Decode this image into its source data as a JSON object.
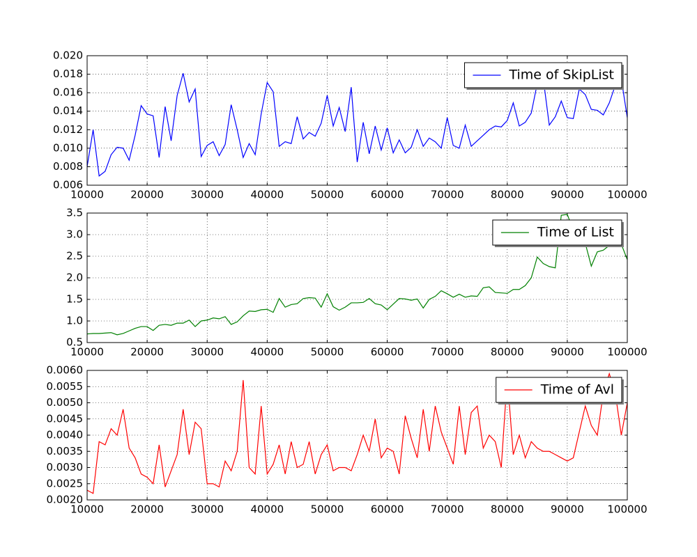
{
  "chart_data": [
    {
      "type": "line",
      "x": [
        10000,
        11000,
        12000,
        13000,
        14000,
        15000,
        16000,
        17000,
        18000,
        19000,
        20000,
        21000,
        22000,
        23000,
        24000,
        25000,
        26000,
        27000,
        28000,
        29000,
        30000,
        31000,
        32000,
        33000,
        34000,
        35000,
        36000,
        37000,
        38000,
        39000,
        40000,
        41000,
        42000,
        43000,
        44000,
        45000,
        46000,
        47000,
        48000,
        49000,
        50000,
        51000,
        52000,
        53000,
        54000,
        55000,
        56000,
        57000,
        58000,
        59000,
        60000,
        61000,
        62000,
        63000,
        64000,
        65000,
        66000,
        67000,
        68000,
        69000,
        70000,
        71000,
        72000,
        73000,
        74000,
        75000,
        76000,
        77000,
        78000,
        79000,
        80000,
        81000,
        82000,
        83000,
        84000,
        85000,
        86000,
        87000,
        88000,
        89000,
        90000,
        91000,
        92000,
        93000,
        94000,
        95000,
        96000,
        97000,
        98000,
        99000,
        100000
      ],
      "series": [
        {
          "name": "Time of SkipList",
          "color": "#0000ff",
          "values": [
            0.008,
            0.012,
            0.007,
            0.0075,
            0.0093,
            0.0101,
            0.01,
            0.0087,
            0.0114,
            0.0146,
            0.0137,
            0.0135,
            0.009,
            0.0145,
            0.0108,
            0.0157,
            0.0181,
            0.015,
            0.0164,
            0.0091,
            0.0103,
            0.0107,
            0.0092,
            0.0104,
            0.0147,
            0.012,
            0.009,
            0.0105,
            0.0093,
            0.0137,
            0.0171,
            0.0161,
            0.0102,
            0.0107,
            0.0105,
            0.0134,
            0.011,
            0.0117,
            0.0113,
            0.0127,
            0.0157,
            0.0124,
            0.0144,
            0.0118,
            0.0166,
            0.0085,
            0.0128,
            0.0094,
            0.0124,
            0.0098,
            0.0122,
            0.0095,
            0.0109,
            0.0095,
            0.0101,
            0.012,
            0.0102,
            0.0111,
            0.0107,
            0.01,
            0.0133,
            0.0103,
            0.01,
            0.0125,
            0.0102,
            0.0108,
            0.0114,
            0.012,
            0.0124,
            0.0123,
            0.013,
            0.0149,
            0.0124,
            0.0128,
            0.0138,
            0.017,
            0.0175,
            0.0125,
            0.0134,
            0.0151,
            0.0133,
            0.0132,
            0.0164,
            0.0158,
            0.0142,
            0.0141,
            0.0136,
            0.0149,
            0.0168,
            0.0175,
            0.0133
          ]
        }
      ],
      "xlim": [
        10000,
        100000
      ],
      "xticks": [
        10000,
        20000,
        30000,
        40000,
        50000,
        60000,
        70000,
        80000,
        90000,
        100000
      ],
      "ylim": [
        0.006,
        0.02
      ],
      "yticks": [
        0.006,
        0.008,
        {
          "value": 0.01,
          "label": "0.010"
        },
        0.012,
        0.014,
        0.016,
        0.018,
        {
          "value": 0.02,
          "label": "0.020"
        }
      ],
      "grid": true,
      "legend": "upper right"
    },
    {
      "type": "line",
      "x": [
        10000,
        11000,
        12000,
        13000,
        14000,
        15000,
        16000,
        17000,
        18000,
        19000,
        20000,
        21000,
        22000,
        23000,
        24000,
        25000,
        26000,
        27000,
        28000,
        29000,
        30000,
        31000,
        32000,
        33000,
        34000,
        35000,
        36000,
        37000,
        38000,
        39000,
        40000,
        41000,
        42000,
        43000,
        44000,
        45000,
        46000,
        47000,
        48000,
        49000,
        50000,
        51000,
        52000,
        53000,
        54000,
        55000,
        56000,
        57000,
        58000,
        59000,
        60000,
        61000,
        62000,
        63000,
        64000,
        65000,
        66000,
        67000,
        68000,
        69000,
        70000,
        71000,
        72000,
        73000,
        74000,
        75000,
        76000,
        77000,
        78000,
        79000,
        80000,
        81000,
        82000,
        83000,
        84000,
        85000,
        86000,
        87000,
        88000,
        89000,
        90000,
        91000,
        92000,
        93000,
        94000,
        95000,
        96000,
        97000,
        98000,
        99000,
        100000
      ],
      "series": [
        {
          "name": "Time of List",
          "color": "#008000",
          "values": [
            0.7,
            0.71,
            0.71,
            0.72,
            0.73,
            0.68,
            0.71,
            0.77,
            0.83,
            0.87,
            0.87,
            0.78,
            0.9,
            0.92,
            0.9,
            0.95,
            0.95,
            1.02,
            0.87,
            1.0,
            1.02,
            1.07,
            1.05,
            1.1,
            0.92,
            0.98,
            1.12,
            1.23,
            1.22,
            1.26,
            1.27,
            1.2,
            1.52,
            1.32,
            1.38,
            1.4,
            1.52,
            1.54,
            1.53,
            1.32,
            1.63,
            1.33,
            1.25,
            1.32,
            1.42,
            1.42,
            1.43,
            1.52,
            1.4,
            1.37,
            1.26,
            1.39,
            1.52,
            1.51,
            1.48,
            1.51,
            1.3,
            1.5,
            1.57,
            1.7,
            1.63,
            1.55,
            1.62,
            1.55,
            1.58,
            1.57,
            1.77,
            1.79,
            1.66,
            1.65,
            1.64,
            1.73,
            1.73,
            1.82,
            2.0,
            2.48,
            2.33,
            2.26,
            2.23,
            3.45,
            3.47,
            3.1,
            3.0,
            2.8,
            2.27,
            2.6,
            2.64,
            2.75,
            2.85,
            2.78,
            2.42
          ]
        }
      ],
      "xlim": [
        10000,
        100000
      ],
      "xticks": [
        10000,
        20000,
        30000,
        40000,
        50000,
        60000,
        70000,
        80000,
        90000,
        100000
      ],
      "ylim": [
        0.5,
        3.5
      ],
      "yticks": [
        0.5,
        {
          "value": 1.0,
          "label": "1.0"
        },
        1.5,
        {
          "value": 2.0,
          "label": "2.0"
        },
        2.5,
        {
          "value": 3.0,
          "label": "3.0"
        },
        3.5
      ],
      "grid": true,
      "legend": "upper right"
    },
    {
      "type": "line",
      "x": [
        10000,
        11000,
        12000,
        13000,
        14000,
        15000,
        16000,
        17000,
        18000,
        19000,
        20000,
        21000,
        22000,
        23000,
        24000,
        25000,
        26000,
        27000,
        28000,
        29000,
        30000,
        31000,
        32000,
        33000,
        34000,
        35000,
        36000,
        37000,
        38000,
        39000,
        40000,
        41000,
        42000,
        43000,
        44000,
        45000,
        46000,
        47000,
        48000,
        49000,
        50000,
        51000,
        52000,
        53000,
        54000,
        55000,
        56000,
        57000,
        58000,
        59000,
        60000,
        61000,
        62000,
        63000,
        64000,
        65000,
        66000,
        67000,
        68000,
        69000,
        70000,
        71000,
        72000,
        73000,
        74000,
        75000,
        76000,
        77000,
        78000,
        79000,
        80000,
        81000,
        82000,
        83000,
        84000,
        85000,
        86000,
        87000,
        88000,
        89000,
        90000,
        91000,
        92000,
        93000,
        94000,
        95000,
        96000,
        97000,
        98000,
        99000,
        100000
      ],
      "series": [
        {
          "name": "Time of Avl",
          "color": "#ff0000",
          "values": [
            0.0023,
            0.0022,
            0.0038,
            0.0037,
            0.0042,
            0.004,
            0.0048,
            0.0036,
            0.0033,
            0.0028,
            0.0027,
            0.0025,
            0.0037,
            0.0024,
            0.0029,
            0.0034,
            0.0048,
            0.0034,
            0.0044,
            0.0042,
            0.0025,
            0.0025,
            0.0024,
            0.0032,
            0.0029,
            0.0035,
            0.0057,
            0.003,
            0.0028,
            0.0049,
            0.0028,
            0.0031,
            0.0037,
            0.0028,
            0.0038,
            0.003,
            0.0031,
            0.0038,
            0.0028,
            0.0034,
            0.0037,
            0.0029,
            0.003,
            0.003,
            0.0029,
            0.0034,
            0.004,
            0.0035,
            0.0045,
            0.0033,
            0.0036,
            0.0035,
            0.0028,
            0.0046,
            0.0039,
            0.0033,
            0.0048,
            0.0035,
            0.0049,
            0.0041,
            0.0036,
            0.0031,
            0.0049,
            0.0034,
            0.0047,
            0.0049,
            0.0036,
            0.004,
            0.0038,
            0.003,
            0.0058,
            0.0034,
            0.004,
            0.0033,
            0.0038,
            0.0036,
            0.0035,
            0.0035,
            0.0034,
            0.0033,
            0.0032,
            0.0033,
            0.0041,
            0.0049,
            0.0043,
            0.004,
            0.0053,
            0.0059,
            0.0053,
            0.004,
            0.005
          ]
        }
      ],
      "xlim": [
        10000,
        100000
      ],
      "xticks": [
        10000,
        20000,
        30000,
        40000,
        50000,
        60000,
        70000,
        80000,
        90000,
        100000
      ],
      "ylim": [
        0.002,
        0.006
      ],
      "yticks": [
        {
          "value": 0.002,
          "label": "0.0020"
        },
        0.0025,
        {
          "value": 0.003,
          "label": "0.0030"
        },
        0.0035,
        {
          "value": 0.004,
          "label": "0.0040"
        },
        0.0045,
        {
          "value": 0.005,
          "label": "0.0050"
        },
        0.0055,
        {
          "value": 0.006,
          "label": "0.0060"
        }
      ],
      "grid": true,
      "legend": "upper right"
    }
  ]
}
